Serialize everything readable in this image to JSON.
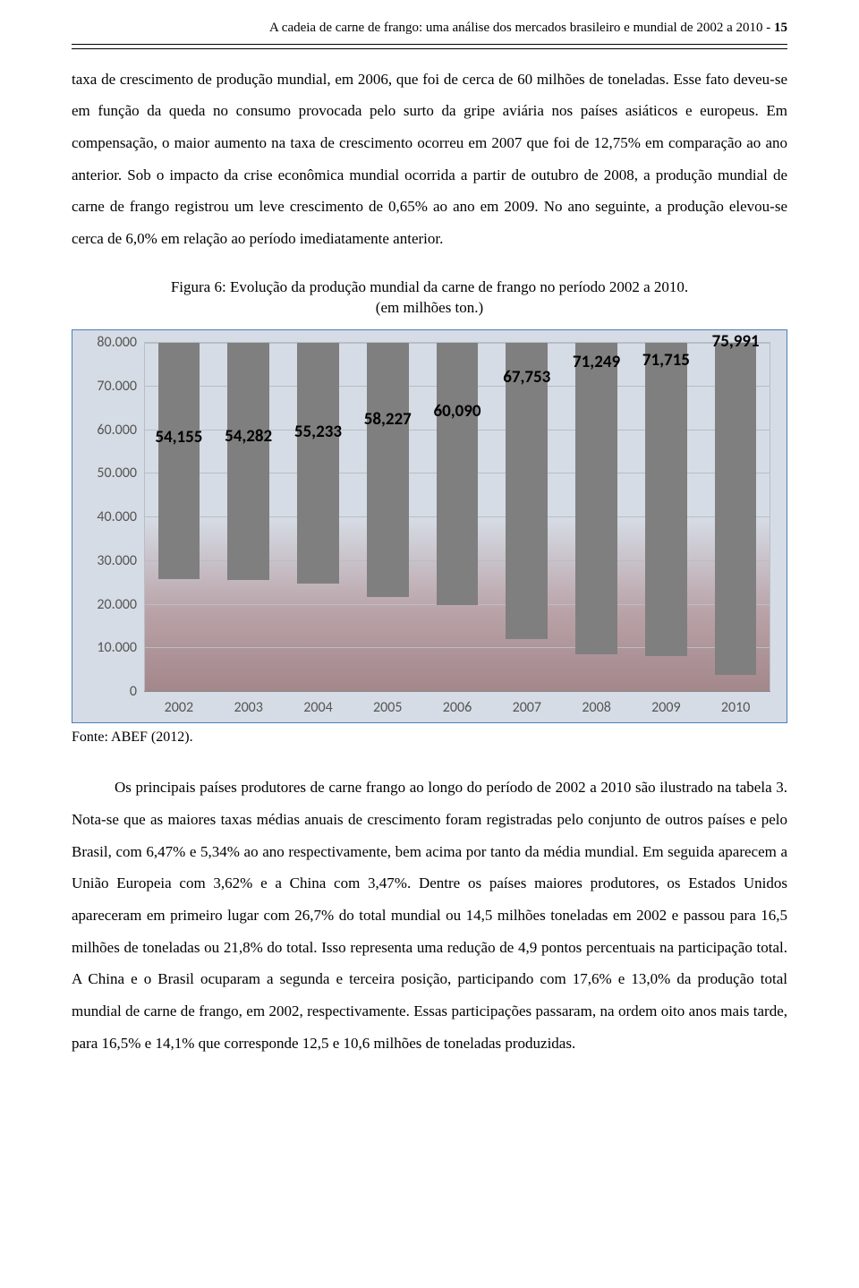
{
  "header": {
    "running_title": "A cadeia de carne de frango: uma análise dos mercados brasileiro e mundial de 2002 a 2010 - ",
    "page_num": "15"
  },
  "para1": "taxa de crescimento de produção mundial, em 2006, que foi de cerca de 60 milhões de toneladas. Esse fato deveu-se em função da queda no consumo provocada pelo surto da gripe aviária nos países asiáticos e europeus. Em compensação, o maior aumento na taxa de crescimento ocorreu em 2007 que foi de 12,75% em comparação ao ano anterior. Sob o impacto da crise econômica mundial ocorrida a partir de outubro de 2008, a produção mundial de carne de frango registrou um leve crescimento de 0,65% ao ano em 2009. No ano seguinte, a produção elevou-se cerca de 6,0% em relação ao período imediatamente anterior.",
  "figure_caption_line1": "Figura 6: Evolução da produção mundial da carne de frango no período 2002 a 2010.",
  "figure_caption_line2": "(em milhões ton.)",
  "chart": {
    "type": "bar",
    "categories": [
      "2002",
      "2003",
      "2004",
      "2005",
      "2006",
      "2007",
      "2008",
      "2009",
      "2010"
    ],
    "values": [
      54155,
      54282,
      55233,
      58227,
      60090,
      67753,
      71249,
      71715,
      75991
    ],
    "value_labels": [
      "54,155",
      "54,282",
      "55,233",
      "58,227",
      "60,090",
      "67,753",
      "71,249",
      "71,715",
      "75,991"
    ],
    "bar_color": "#7f7f7f",
    "ylim_max": 80000,
    "ytick_step": 10000,
    "ytick_labels": [
      "0",
      "10.000",
      "20.000",
      "30.000",
      "40.000",
      "50.000",
      "60.000",
      "70.000",
      "80.000"
    ],
    "panel_bg": "#d6dce5",
    "border_color": "#4a7ebb",
    "grid_color": "#b9bdc5",
    "axis_font": "Calibri",
    "axis_fontsize": 16,
    "value_fontsize": 19,
    "value_fontweight": "bold"
  },
  "source_line": "Fonte: ABEF (2012).",
  "para2": "Os principais países produtores de carne frango ao longo do período de 2002 a 2010 são ilustrado na tabela 3. Nota-se que as maiores taxas médias anuais de crescimento foram registradas pelo conjunto de outros países e pelo Brasil, com 6,47% e 5,34% ao ano respectivamente, bem acima por tanto da média mundial. Em seguida aparecem a União Europeia com 3,62% e a China com 3,47%. Dentre os países maiores produtores, os Estados Unidos apareceram em primeiro lugar com 26,7% do total mundial ou 14,5 milhões toneladas em 2002 e passou para 16,5 milhões de toneladas ou 21,8% do total. Isso representa uma redução de 4,9 pontos percentuais na participação total. A China e o Brasil ocuparam a segunda e terceira posição, participando com 17,6% e 13,0% da produção total mundial de carne de frango, em 2002, respectivamente. Essas participações passaram, na ordem oito anos mais tarde, para 16,5% e 14,1% que corresponde 12,5 e 10,6 milhões de toneladas produzidas."
}
